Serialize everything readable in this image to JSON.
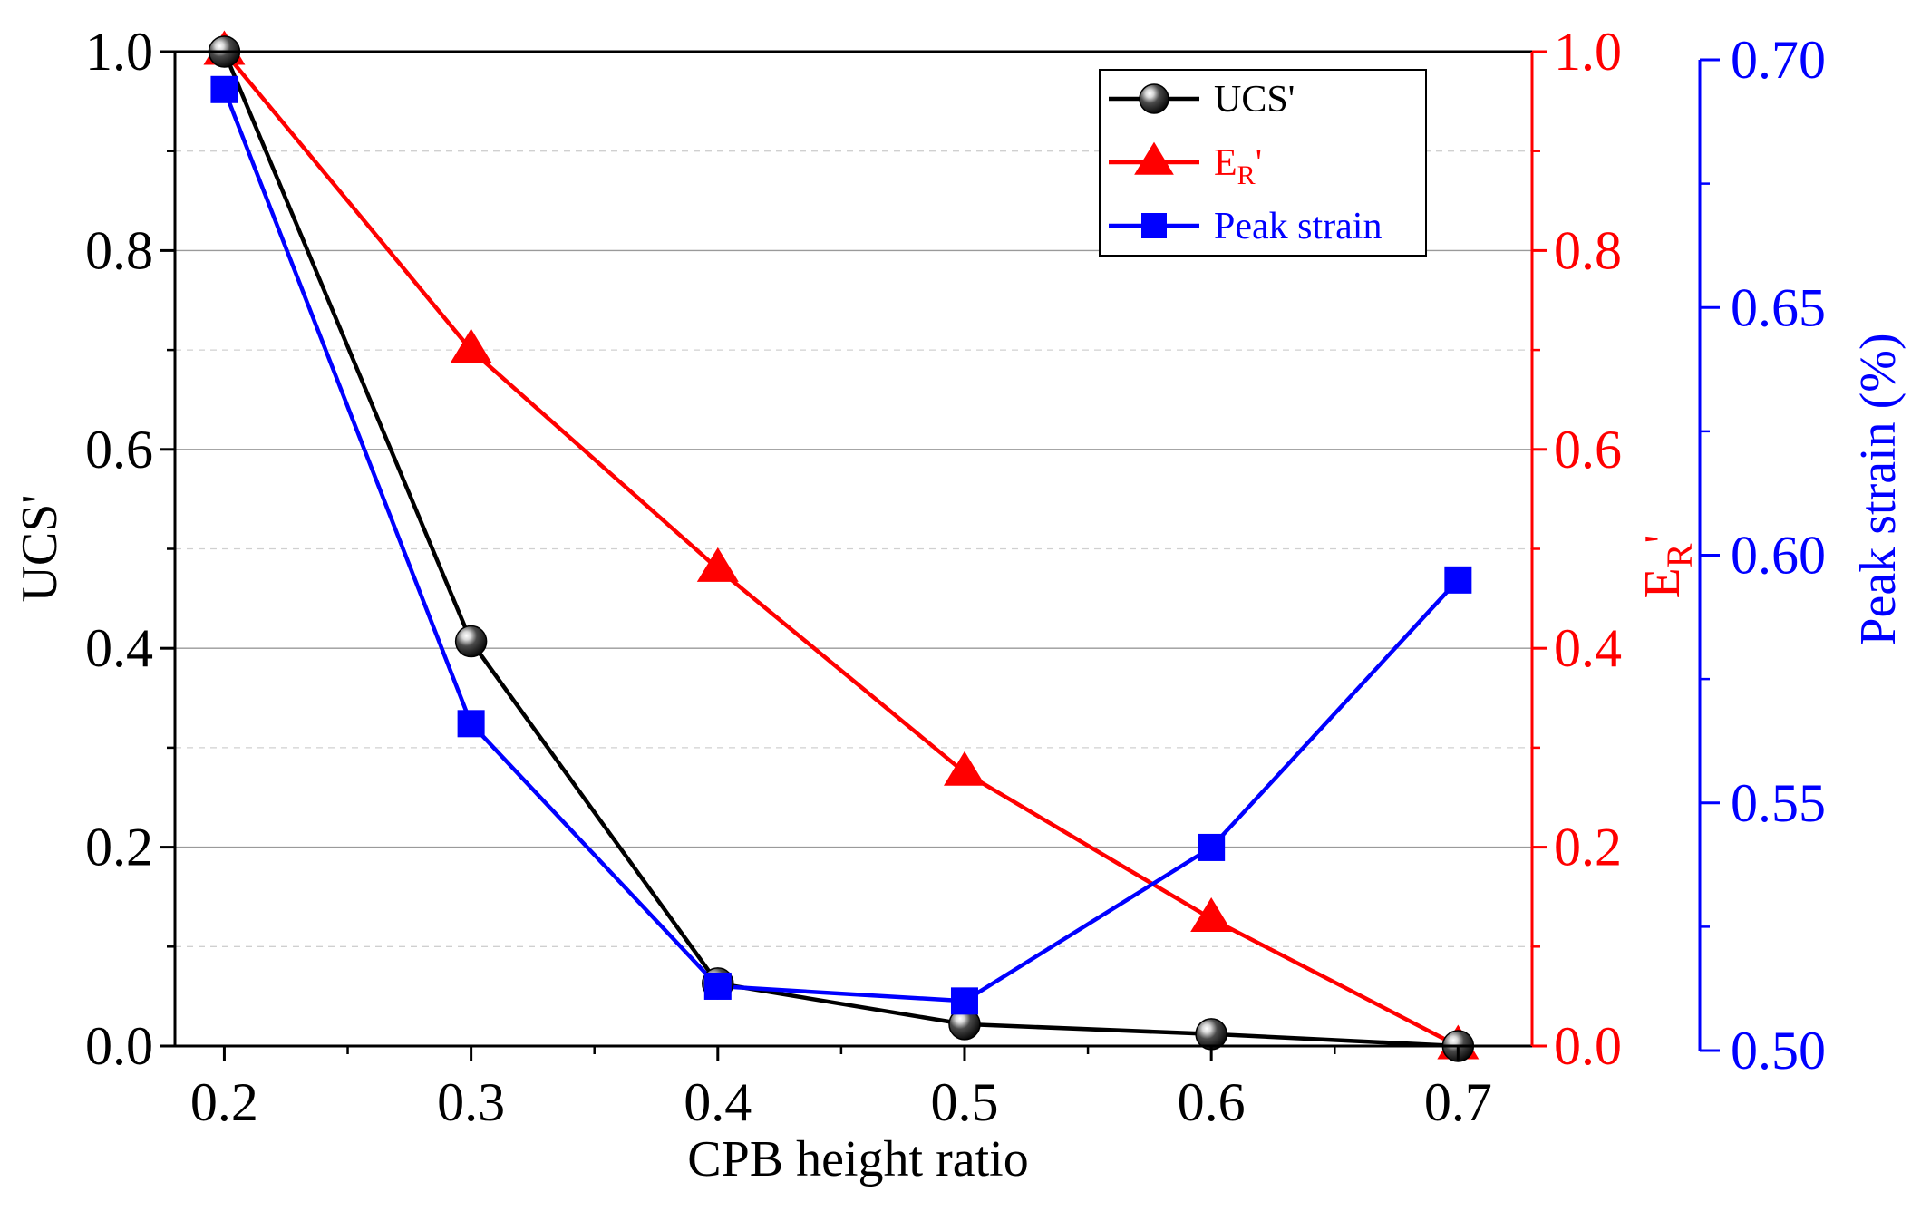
{
  "chart_data": {
    "type": "line",
    "xlabel": "CPB height ratio",
    "x_ticks": [
      "0.2",
      "0.3",
      "0.4",
      "0.5",
      "0.6",
      "0.7"
    ],
    "xlim": [
      0.18,
      0.73
    ],
    "left_axis": {
      "label": "UCS'",
      "ylim": [
        0,
        1.0
      ],
      "ticks": [
        "0.0",
        "0.2",
        "0.4",
        "0.6",
        "0.8",
        "1.0"
      ],
      "color": "#000000"
    },
    "right_axis_1": {
      "label_main": "E",
      "label_sub": "R",
      "label_suffix": "'",
      "ylim": [
        0,
        1.0
      ],
      "ticks": [
        "0.0",
        "0.2",
        "0.4",
        "0.6",
        "0.8",
        "1.0"
      ],
      "color": "#ff0000"
    },
    "right_axis_2": {
      "label": "Peak strain (%)",
      "ylim": [
        0.5,
        0.7
      ],
      "ticks": [
        "0.50",
        "0.55",
        "0.60",
        "0.65",
        "0.70"
      ],
      "color": "#0000ff"
    },
    "grid": true,
    "legend_position": "top-right",
    "series": [
      {
        "name": "UCS'",
        "axis": "left",
        "marker": "sphere",
        "color": "#000000",
        "x": [
          0.2,
          0.3,
          0.4,
          0.5,
          0.6,
          0.7
        ],
        "y": [
          1.0,
          0.407,
          0.063,
          0.022,
          0.012,
          0.0
        ]
      },
      {
        "name": "E_R'",
        "legend_main": "E",
        "legend_sub": "R",
        "legend_suffix": "'",
        "axis": "right1",
        "marker": "triangle",
        "color": "#ff0000",
        "x": [
          0.2,
          0.3,
          0.4,
          0.5,
          0.6,
          0.7
        ],
        "y": [
          1.0,
          0.7,
          0.48,
          0.275,
          0.128,
          0.0
        ]
      },
      {
        "name": "Peak strain",
        "axis": "right2",
        "marker": "square",
        "color": "#0000ff",
        "x": [
          0.2,
          0.3,
          0.4,
          0.5,
          0.6,
          0.7
        ],
        "y": [
          0.694,
          0.566,
          0.513,
          0.51,
          0.541,
          0.595
        ]
      }
    ]
  }
}
